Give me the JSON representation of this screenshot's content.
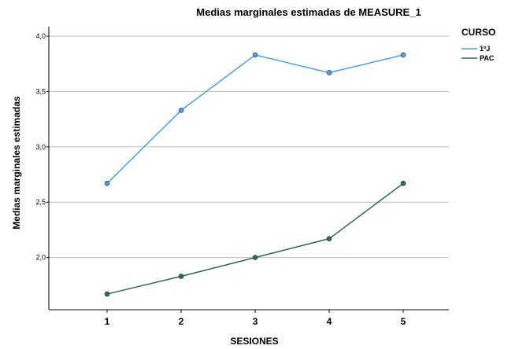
{
  "chart_data": {
    "type": "line",
    "title": "Medias marginales estimadas de MEASURE_1",
    "xlabel": "SESIONES",
    "ylabel": "Medias marginales estimadas",
    "categories": [
      "1",
      "2",
      "3",
      "4",
      "5"
    ],
    "ylim": [
      1.6,
      4.0
    ],
    "yticks": [
      "2,0",
      "2,5",
      "3,0",
      "3,5",
      "4,0"
    ],
    "grid": true,
    "legend": {
      "title": "CURSO",
      "placement": "top-right"
    },
    "series": [
      {
        "name": "1ºJ",
        "values": [
          2.67,
          3.33,
          3.83,
          3.67,
          3.83
        ],
        "color": "#4a9ee8"
      },
      {
        "name": "PAC",
        "values": [
          1.67,
          1.83,
          2.0,
          2.17,
          2.67
        ],
        "color": "#2e6b5e"
      }
    ]
  }
}
